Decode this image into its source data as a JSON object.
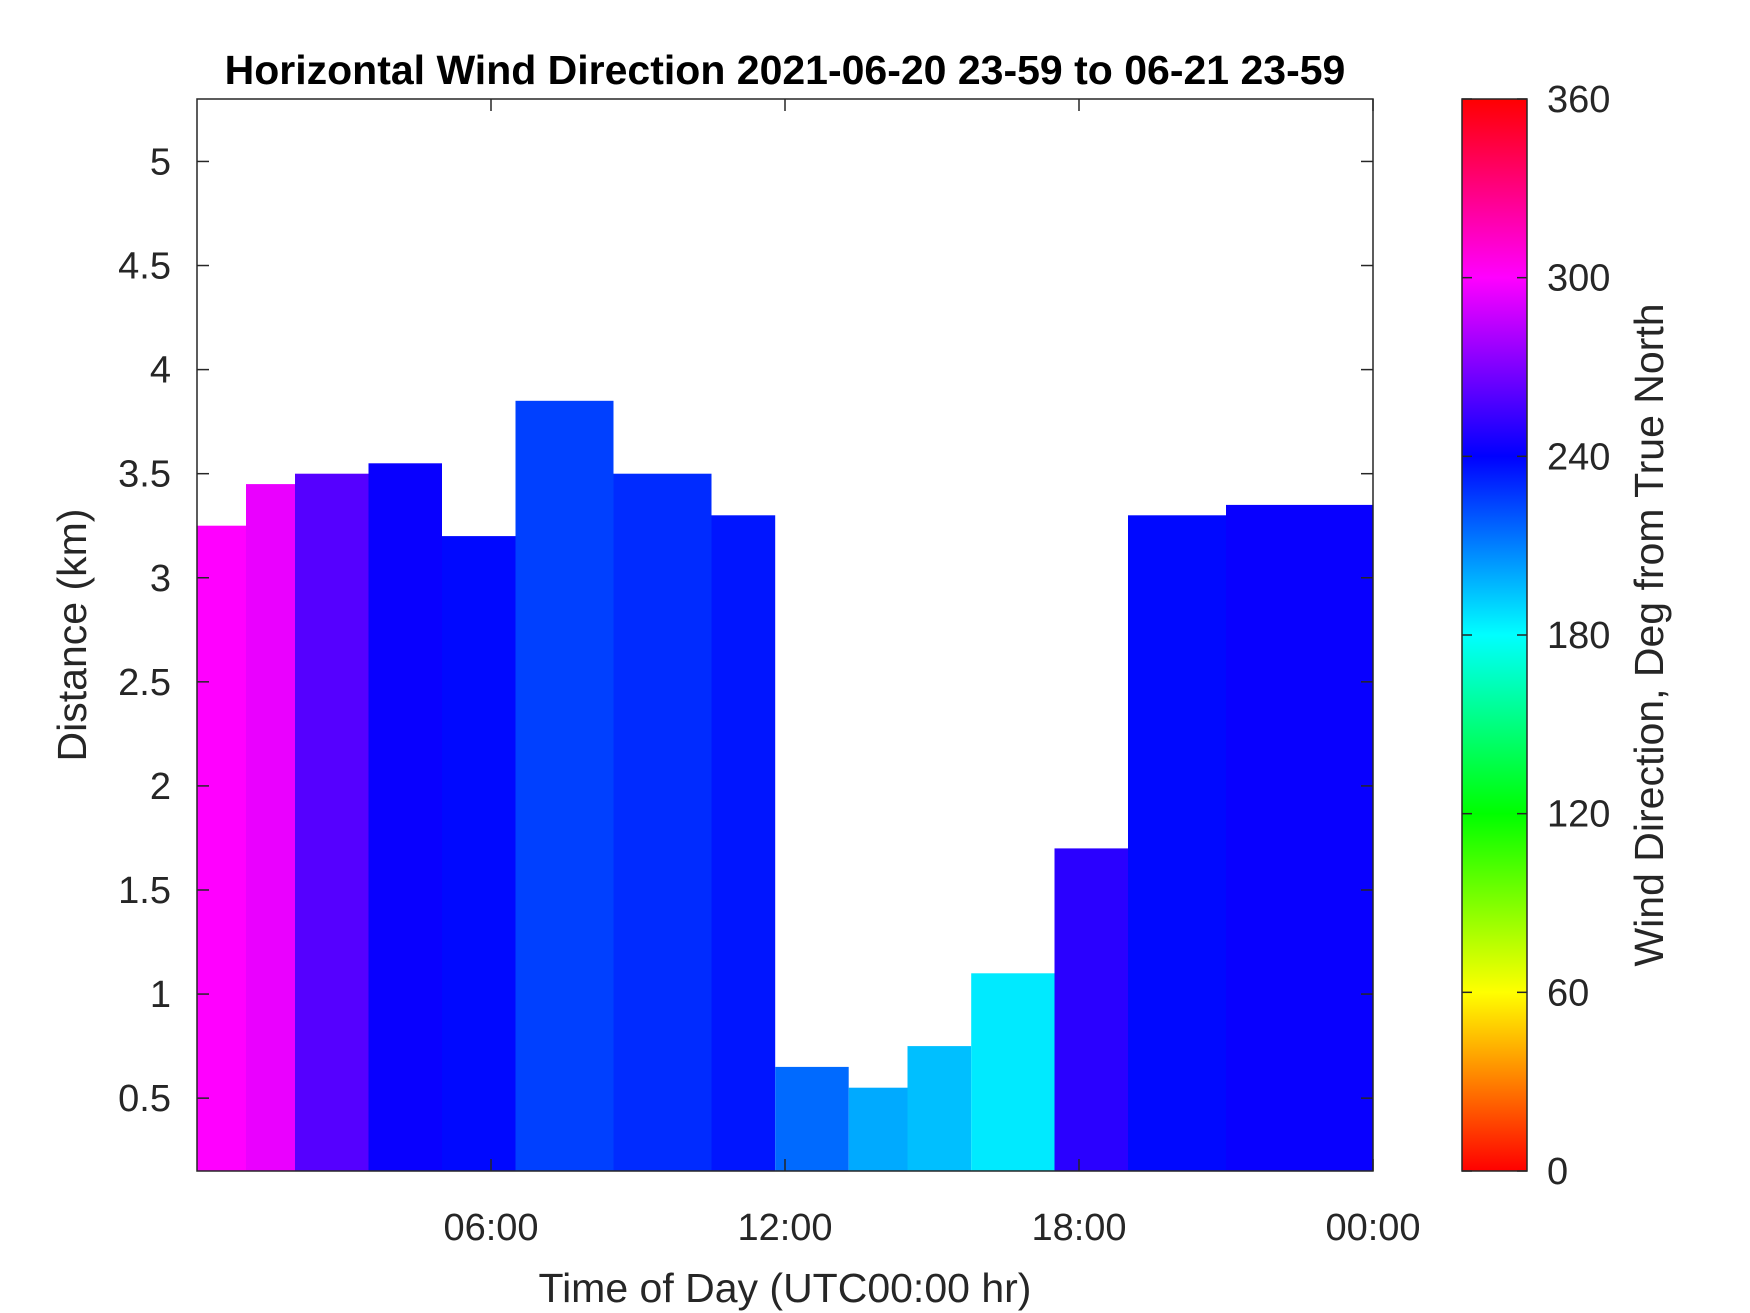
{
  "chart_data": {
    "type": "heatmap",
    "title": "Horizontal Wind Direction 2021-06-20 23-59 to 06-21 23-59",
    "xlabel": "Time of Day (UTC00:00 hr)",
    "ylabel": "Distance (km)",
    "colorbar_label": "Wind Direction, Deg from True North",
    "x_ticks": [
      "06:00",
      "12:00",
      "18:00",
      "00:00"
    ],
    "x_tick_hours": [
      6,
      12,
      18,
      24
    ],
    "xlim_hours": [
      0,
      24
    ],
    "y_ticks": [
      "0.5",
      "1",
      "1.5",
      "2",
      "2.5",
      "3",
      "3.5",
      "4",
      "4.5",
      "5"
    ],
    "y_tick_values": [
      0.5,
      1,
      1.5,
      2,
      2.5,
      3,
      3.5,
      4,
      4.5,
      5
    ],
    "ylim": [
      0.15,
      5.3
    ],
    "colorbar_ticks": [
      "0",
      "60",
      "120",
      "180",
      "240",
      "300",
      "360"
    ],
    "colorbar_tick_values": [
      0,
      60,
      120,
      180,
      240,
      300,
      360
    ],
    "clim": [
      0,
      360
    ],
    "colormap": [
      "#ff0000",
      "#ffff00",
      "#00ff00",
      "#00ffff",
      "#0000ff",
      "#ff00ff",
      "#ff0000"
    ],
    "grid": false,
    "regions": [
      {
        "x": [
          0.0,
          1.0
        ],
        "y_top": 3.25,
        "value": 300
      },
      {
        "x": [
          1.0,
          2.0
        ],
        "y_top": 3.45,
        "value": 295
      },
      {
        "x": [
          2.0,
          3.5
        ],
        "y_top": 3.5,
        "value": 260
      },
      {
        "x": [
          3.5,
          5.0
        ],
        "y_top": 3.55,
        "value": 242
      },
      {
        "x": [
          5.0,
          6.5
        ],
        "y_top": 3.2,
        "value": 238
      },
      {
        "x": [
          6.5,
          8.5
        ],
        "y_top": 3.85,
        "value": 225
      },
      {
        "x": [
          8.5,
          10.5
        ],
        "y_top": 3.5,
        "value": 230
      },
      {
        "x": [
          10.5,
          11.8
        ],
        "y_top": 3.3,
        "value": 235
      },
      {
        "x": [
          11.8,
          13.3
        ],
        "y_top": 0.65,
        "value": 215
      },
      {
        "x": [
          13.3,
          14.5
        ],
        "y_top": 0.55,
        "value": 200
      },
      {
        "x": [
          14.5,
          15.8
        ],
        "y_top": 0.75,
        "value": 195
      },
      {
        "x": [
          15.8,
          17.5
        ],
        "y_top": 1.1,
        "value": 185
      },
      {
        "x": [
          17.5,
          19.0
        ],
        "y_top": 1.7,
        "value": 250
      },
      {
        "x": [
          19.0,
          21.0
        ],
        "y_top": 3.3,
        "value": 238
      },
      {
        "x": [
          21.0,
          24.0
        ],
        "y_top": 3.35,
        "value": 242
      }
    ]
  }
}
